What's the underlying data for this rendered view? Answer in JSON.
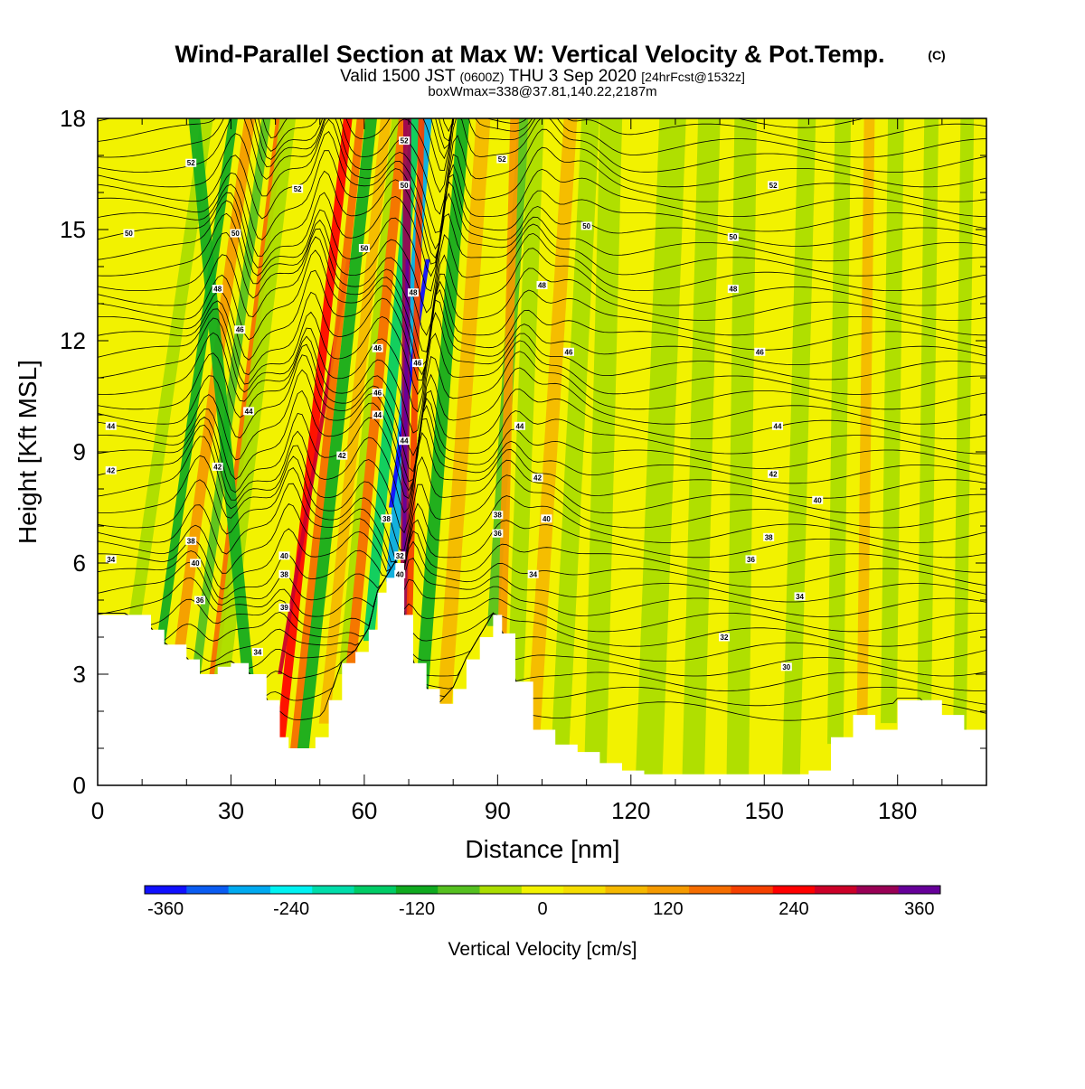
{
  "title": {
    "main": "Wind-Parallel Section at Max W: Vertical Velocity & Pot.Temp.",
    "copyright": "(C)",
    "valid_prefix": "Valid 1500 JST",
    "valid_utc": "(0600Z)",
    "valid_date": "THU 3 Sep 2020",
    "forecast": "[24hrFcst@1532z]",
    "box_info": "boxWmax=338@37.81,140.22,2187m"
  },
  "chart_data": {
    "type": "heatmap",
    "xlabel": "Distance [nm]",
    "ylabel": "Height [Kft MSL]",
    "xlim": [
      0,
      200
    ],
    "ylim": [
      0,
      18
    ],
    "x_ticks": [
      0,
      30,
      60,
      90,
      120,
      150,
      180
    ],
    "y_ticks": [
      0,
      3,
      6,
      9,
      12,
      15,
      18
    ],
    "terrain_kft": {
      "x": [
        0,
        6,
        12,
        15,
        20,
        23,
        27,
        30,
        34,
        38,
        41,
        43,
        46,
        49,
        52,
        55,
        58,
        61,
        63,
        65,
        67,
        69,
        71,
        74,
        77,
        80,
        83,
        86,
        89,
        91,
        94,
        98,
        103,
        108,
        113,
        118,
        123,
        130,
        138,
        145,
        150,
        155,
        160,
        165,
        170,
        175,
        180,
        185,
        190,
        195,
        200
      ],
      "y": [
        4.6,
        4.6,
        4.2,
        3.8,
        3.4,
        3.0,
        3.2,
        3.3,
        3.0,
        2.3,
        1.3,
        1.0,
        1.0,
        1.3,
        2.3,
        3.3,
        3.6,
        4.2,
        5.2,
        5.6,
        6.0,
        4.6,
        3.3,
        2.6,
        2.2,
        2.6,
        3.4,
        4.0,
        4.6,
        4.1,
        2.8,
        1.5,
        1.1,
        0.9,
        0.6,
        0.4,
        0.3,
        0.3,
        0.3,
        0.3,
        0.3,
        0.3,
        0.4,
        1.3,
        1.9,
        1.5,
        2.3,
        2.3,
        1.9,
        1.5,
        1.3
      ]
    },
    "vertical_velocity_cm_s": [
      {
        "x_base": 8,
        "slope": 1.2,
        "width": 1.4,
        "value": -60
      },
      {
        "x_base": 14,
        "slope": 1.15,
        "width": 1.0,
        "value": -120
      },
      {
        "x_base": 18,
        "slope": 1.1,
        "width": 1.2,
        "value": 120
      },
      {
        "x_base": 22,
        "slope": 1.05,
        "width": 1.0,
        "value": -90
      },
      {
        "x_base": 26,
        "slope": 1.0,
        "width": 1.0,
        "value": 140
      },
      {
        "x_base": 28,
        "slope": 0.98,
        "width": 1.8,
        "value": -60
      },
      {
        "x_base": 34,
        "slope": -0.8,
        "width": 1.3,
        "value": -120
      },
      {
        "x_base": 41,
        "slope": 0.9,
        "width": 1.0,
        "value": 230
      },
      {
        "x_base": 44,
        "slope": 0.88,
        "width": 0.9,
        "value": 140
      },
      {
        "x_base": 46,
        "slope": 0.9,
        "width": 1.3,
        "value": -140
      },
      {
        "x_base": 51,
        "slope": 0.85,
        "width": 1.2,
        "value": 90
      },
      {
        "x_base": 55,
        "slope": 0.8,
        "width": 0.8,
        "value": -60
      },
      {
        "x_base": 57,
        "slope": 0.8,
        "width": 1.1,
        "value": 150
      },
      {
        "x_base": 61,
        "slope": 0.75,
        "width": 1.2,
        "value": -160
      },
      {
        "x_base": 66,
        "slope": 0.65,
        "width": 1.1,
        "value": -300
      },
      {
        "x_base": 69,
        "slope": 0.05,
        "width": 0.9,
        "value": 300
      },
      {
        "x_base": 70,
        "slope": 0.2,
        "width": 0.7,
        "value": 180
      },
      {
        "x_base": 73,
        "slope": 0.6,
        "width": 1.4,
        "value": -140
      },
      {
        "x_base": 78,
        "slope": 0.55,
        "width": 1.6,
        "value": 60
      },
      {
        "x_base": 89,
        "slope": 0.5,
        "width": 1.3,
        "value": -100
      },
      {
        "x_base": 91,
        "slope": 0.2,
        "width": 1.0,
        "value": 120
      },
      {
        "x_base": 94,
        "slope": 0.3,
        "width": 1.8,
        "value": -50
      },
      {
        "x_base": 98,
        "slope": 0.5,
        "width": 1.5,
        "value": 90
      },
      {
        "x_base": 104,
        "slope": 0.4,
        "width": 2.0,
        "value": -40
      },
      {
        "x_base": 112,
        "slope": 0.2,
        "width": 2.5,
        "value": -50
      },
      {
        "x_base": 124,
        "slope": 0.3,
        "width": 3.0,
        "value": -60
      },
      {
        "x_base": 134,
        "slope": 0.2,
        "width": 2.5,
        "value": -50
      },
      {
        "x_base": 144,
        "slope": 0.1,
        "width": 2.5,
        "value": -60
      },
      {
        "x_base": 156,
        "slope": 0.2,
        "width": 2.0,
        "value": -60
      },
      {
        "x_base": 166,
        "slope": 0.1,
        "width": 1.8,
        "value": -60
      },
      {
        "x_base": 172,
        "slope": 0.1,
        "width": 1.2,
        "value": 70
      },
      {
        "x_base": 178,
        "slope": 0.1,
        "width": 1.8,
        "value": -60
      },
      {
        "x_base": 186,
        "slope": 0.1,
        "width": 1.6,
        "value": -60
      },
      {
        "x_base": 194,
        "slope": 0.1,
        "width": 1.5,
        "value": -50
      }
    ],
    "potential_temperature_labels": [
      {
        "text": "52",
        "x": 21,
        "y": 16.8
      },
      {
        "text": "52",
        "x": 45,
        "y": 16.1
      },
      {
        "text": "52",
        "x": 69,
        "y": 17.4
      },
      {
        "text": "52",
        "x": 91,
        "y": 16.9
      },
      {
        "text": "52",
        "x": 152,
        "y": 16.2
      },
      {
        "text": "50",
        "x": 7,
        "y": 14.9
      },
      {
        "text": "50",
        "x": 31,
        "y": 14.9
      },
      {
        "text": "50",
        "x": 60,
        "y": 14.5
      },
      {
        "text": "50",
        "x": 69,
        "y": 16.2
      },
      {
        "text": "50",
        "x": 110,
        "y": 15.1
      },
      {
        "text": "50",
        "x": 143,
        "y": 14.8
      },
      {
        "text": "48",
        "x": 27,
        "y": 13.4
      },
      {
        "text": "48",
        "x": 71,
        "y": 13.3
      },
      {
        "text": "48",
        "x": 100,
        "y": 13.5
      },
      {
        "text": "48",
        "x": 143,
        "y": 13.4
      },
      {
        "text": "46",
        "x": 32,
        "y": 12.3
      },
      {
        "text": "46",
        "x": 63,
        "y": 11.8
      },
      {
        "text": "46",
        "x": 72,
        "y": 11.4
      },
      {
        "text": "46",
        "x": 106,
        "y": 11.7
      },
      {
        "text": "46",
        "x": 149,
        "y": 11.7
      },
      {
        "text": "46",
        "x": 63,
        "y": 10.6
      },
      {
        "text": "44",
        "x": 3,
        "y": 9.7
      },
      {
        "text": "44",
        "x": 34,
        "y": 10.1
      },
      {
        "text": "44",
        "x": 63,
        "y": 10.0
      },
      {
        "text": "44",
        "x": 69,
        "y": 9.3
      },
      {
        "text": "44",
        "x": 95,
        "y": 9.7
      },
      {
        "text": "44",
        "x": 153,
        "y": 9.7
      },
      {
        "text": "42",
        "x": 3,
        "y": 8.5
      },
      {
        "text": "42",
        "x": 27,
        "y": 8.6
      },
      {
        "text": "42",
        "x": 55,
        "y": 8.9
      },
      {
        "text": "42",
        "x": 99,
        "y": 8.3
      },
      {
        "text": "42",
        "x": 152,
        "y": 8.4
      },
      {
        "text": "40",
        "x": 22,
        "y": 6.0
      },
      {
        "text": "40",
        "x": 42,
        "y": 6.2
      },
      {
        "text": "40",
        "x": 101,
        "y": 7.2
      },
      {
        "text": "40",
        "x": 162,
        "y": 7.7
      },
      {
        "text": "38",
        "x": 21,
        "y": 6.6
      },
      {
        "text": "38",
        "x": 42,
        "y": 5.7
      },
      {
        "text": "38",
        "x": 65,
        "y": 7.2
      },
      {
        "text": "38",
        "x": 90,
        "y": 7.3
      },
      {
        "text": "38",
        "x": 151,
        "y": 6.7
      },
      {
        "text": "36",
        "x": 23,
        "y": 5.0
      },
      {
        "text": "36",
        "x": 90,
        "y": 6.8
      },
      {
        "text": "36",
        "x": 147,
        "y": 6.1
      },
      {
        "text": "39",
        "x": 42,
        "y": 4.8
      },
      {
        "text": "34",
        "x": 3,
        "y": 6.1
      },
      {
        "text": "34",
        "x": 36,
        "y": 3.6
      },
      {
        "text": "34",
        "x": 98,
        "y": 5.7
      },
      {
        "text": "34",
        "x": 158,
        "y": 5.1
      },
      {
        "text": "32",
        "x": 68,
        "y": 6.2
      },
      {
        "text": "32",
        "x": 141,
        "y": 4.0
      },
      {
        "text": "30",
        "x": 155,
        "y": 3.2
      },
      {
        "text": "40",
        "x": 68,
        "y": 5.7
      }
    ],
    "colorbar": {
      "label": "Vertical Velocity [cm/s]",
      "min": -380,
      "max": 380,
      "step": 40,
      "tick_values": [
        -360,
        -240,
        -120,
        0,
        120,
        240,
        360
      ],
      "tick_labels": [
        "-360",
        "-240",
        "-120",
        "0",
        "120",
        "240",
        "360"
      ],
      "colors": [
        "#1010ff",
        "#0a5cf2",
        "#00aaf0",
        "#00f2f2",
        "#00ddaa",
        "#00cc66",
        "#10aa20",
        "#55c020",
        "#aadd00",
        "#f2f200",
        "#f5dd00",
        "#f5b800",
        "#f59a00",
        "#f56d00",
        "#f54000",
        "#ff0000",
        "#cc0028",
        "#990055",
        "#660099"
      ]
    }
  }
}
